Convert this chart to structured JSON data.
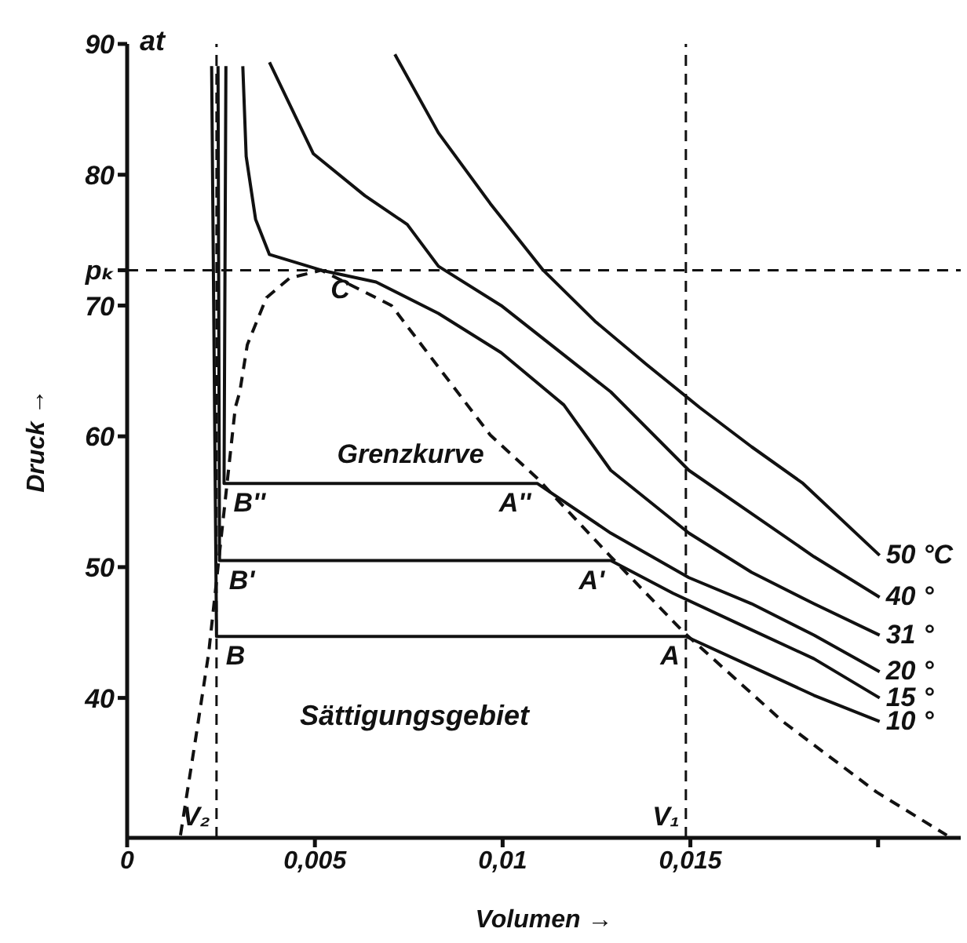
{
  "chart_data": {
    "type": "line",
    "xlabel": "Volumen →",
    "ylabel": "Druck →",
    "xlim": [
      0,
      0.0222
    ],
    "ylim": [
      29.3,
      90
    ],
    "xticks": [
      0,
      {
        "value": 0.005,
        "label": "0,005"
      },
      {
        "value": 0.01,
        "label": "0,01"
      },
      {
        "value": 0.015,
        "label": "0,015"
      },
      {
        "value": 0.02,
        "label": null
      }
    ],
    "yticks": [
      40,
      50,
      60,
      70,
      {
        "value": 72.7,
        "label": "pₖ"
      },
      80,
      90
    ],
    "marker": "none",
    "series": [
      {
        "name": "50 °C",
        "color": "#111111",
        "x": [
          0.00713,
          0.00829,
          0.00967,
          0.01108,
          0.01246,
          0.01383,
          0.01525,
          0.01663,
          0.018,
          0.02004
        ],
        "values": [
          89.2,
          83.2,
          77.8,
          72.7,
          68.8,
          65.5,
          62.2,
          59.2,
          56.4,
          50.9
        ]
      },
      {
        "name": "40 °",
        "color": "#111111",
        "x": [
          0.00379,
          0.00496,
          0.00633,
          0.00746,
          0.00829,
          0.00996,
          0.01288,
          0.01496,
          0.01663,
          0.01829,
          0.02004
        ],
        "values": [
          88.6,
          81.6,
          78.4,
          76.2,
          73.0,
          70.0,
          63.4,
          57.4,
          54.1,
          50.8,
          47.7
        ]
      },
      {
        "name": "31 °",
        "color": "#111111",
        "x": [
          0.00308,
          0.00317,
          0.00342,
          0.00379,
          0.00517,
          0.00663,
          0.00829,
          0.00996,
          0.01163,
          0.01288,
          0.01496,
          0.01663,
          0.01829,
          0.02004
        ],
        "values": [
          88.3,
          81.4,
          76.6,
          73.9,
          72.7,
          71.8,
          69.4,
          66.4,
          62.4,
          57.4,
          52.6,
          49.6,
          47.2,
          44.8
        ]
      },
      {
        "name": "20 °",
        "color": "#111111",
        "x": [
          0.00263,
          0.00258,
          0.01092,
          0.01288,
          0.01496,
          0.01663,
          0.01829,
          0.02004
        ],
        "values": [
          88.3,
          56.4,
          56.4,
          52.6,
          49.2,
          47.2,
          44.8,
          42.0
        ]
      },
      {
        "name": "15 °",
        "color": "#111111",
        "x": [
          0.00242,
          0.00246,
          0.01288,
          0.01454,
          0.01663,
          0.01829,
          0.02004
        ],
        "values": [
          88.3,
          50.5,
          50.5,
          48.0,
          45.2,
          43.0,
          40.0
        ]
      },
      {
        "name": "10 °",
        "color": "#111111",
        "x": [
          0.00225,
          0.00238,
          0.01488,
          0.01663,
          0.01829,
          0.02004
        ],
        "values": [
          88.3,
          44.7,
          44.7,
          42.4,
          40.2,
          38.2
        ]
      },
      {
        "color": "#111111",
        "line_style": "dashed",
        "x": [
          0.00142,
          0.00183,
          0.00217,
          0.00288,
          0.003,
          0.0032,
          0.00371,
          0.00433,
          0.00517,
          0.00704,
          0.00967,
          0.01092,
          0.01288,
          0.01483,
          0.01746,
          0.01996,
          0.02183
        ],
        "values": [
          29.5,
          37,
          43.4,
          62.2,
          63.4,
          67,
          70.6,
          72.1,
          72.7,
          70.0,
          60.1,
          56.8,
          50.8,
          45.0,
          38.2,
          32.8,
          29.5
        ]
      }
    ],
    "ref_lines": [
      {
        "axis": "y",
        "value": 72.7,
        "color": "#111111",
        "line_style": "dashed"
      },
      {
        "axis": "x",
        "value": 0.00238,
        "label": "V₂",
        "color": "#111111",
        "line_style": "dashed"
      },
      {
        "axis": "x",
        "value": 0.01488,
        "label": "V₁",
        "color": "#111111",
        "line_style": "dashed"
      }
    ],
    "annotations": [
      "at",
      {
        "text": "C",
        "x": 0.00517,
        "y": 72.7
      },
      {
        "text": "Grenzkurve",
        "x": 0.00967,
        "y": 60.1
      },
      {
        "text": "B''",
        "x": 0.00258,
        "y": 56.4
      },
      {
        "text": "B'",
        "x": 0.00246,
        "y": 50.5
      },
      {
        "text": "B",
        "x": 0.00238,
        "y": 44.7
      },
      {
        "text": "A''",
        "x": 0.01092,
        "y": 56.4
      },
      {
        "text": "A'",
        "x": 0.01288,
        "y": 50.5
      },
      {
        "text": "A",
        "x": 0.01488,
        "y": 44.7
      },
      "Sättigungsgebiet"
    ]
  }
}
